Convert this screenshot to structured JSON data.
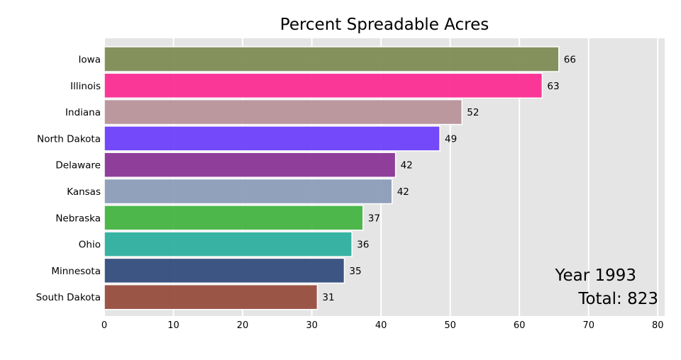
{
  "chart_data": {
    "type": "bar",
    "orientation": "horizontal",
    "title": "Percent Spreadable Acres",
    "categories": [
      "Iowa",
      "Illinois",
      "Indiana",
      "North Dakota",
      "Delaware",
      "Kansas",
      "Nebraska",
      "Ohio",
      "Minnesota",
      "South Dakota"
    ],
    "values": [
      65.7,
      63.3,
      51.7,
      48.5,
      42.1,
      41.6,
      37.4,
      35.8,
      34.7,
      30.8
    ],
    "value_labels": [
      "66",
      "63",
      "52",
      "49",
      "42",
      "42",
      "37",
      "36",
      "35",
      "31"
    ],
    "colors": [
      "#808c54",
      "#fb2d92",
      "#b7949a",
      "#6e40fb",
      "#8a3596",
      "#8c9db8",
      "#44b443",
      "#2eb09f",
      "#344d7c",
      "#974d3e"
    ],
    "xlim": [
      0,
      81
    ],
    "xticks": [
      0,
      10,
      20,
      30,
      40,
      50,
      60,
      70,
      80
    ],
    "xtick_labels": [
      "0",
      "10",
      "20",
      "30",
      "40",
      "50",
      "60",
      "70",
      "80"
    ],
    "grid": true,
    "xlabel": "",
    "ylabel": "",
    "annotations": {
      "year": "Year 1993",
      "total": "Total: 823"
    }
  }
}
